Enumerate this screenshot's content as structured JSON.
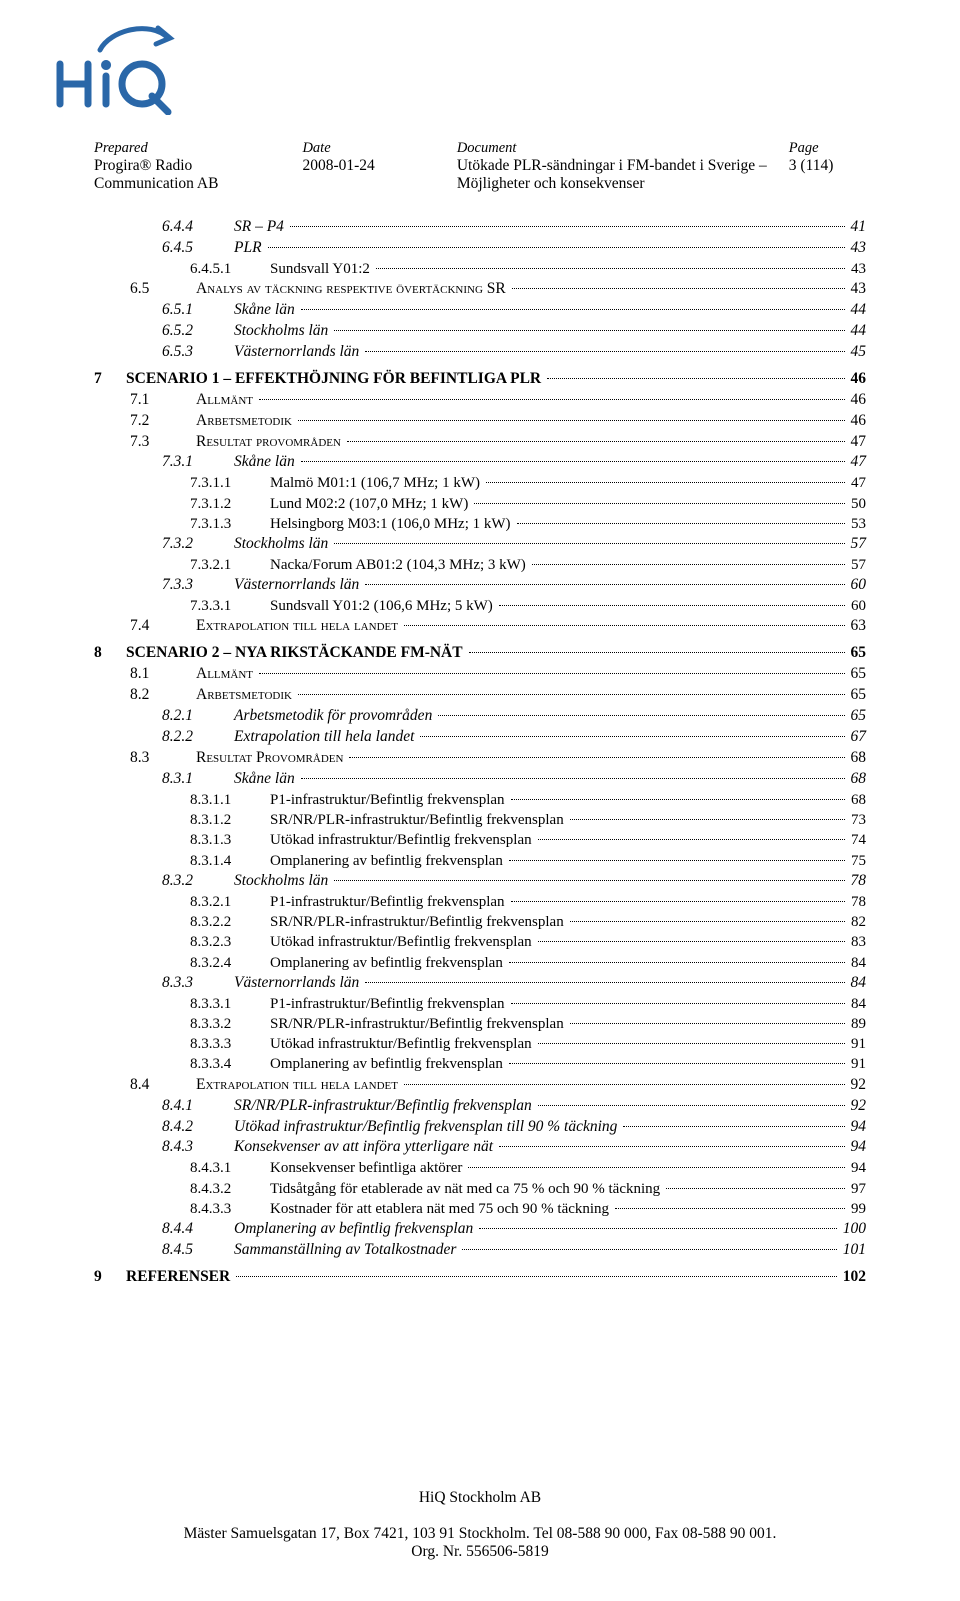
{
  "header": {
    "labels": {
      "prepared": "Prepared",
      "date": "Date",
      "document": "Document",
      "page": "Page"
    },
    "prepared_line1": "Progira® Radio",
    "prepared_line2": "Communication AB",
    "date": "2008-01-24",
    "document_line1": "Utökade PLR-sändningar i FM-bandet i Sverige –",
    "document_line2": "Möjligheter och konsekvenser",
    "page": "3 (114)"
  },
  "logo": {
    "brand": "HiQ",
    "stroke_color": "#2a67a8",
    "accent_color": "#2a67a8"
  },
  "toc": [
    {
      "lvl": "2",
      "num": "6.4.4",
      "title": "SR – P4",
      "page": "41"
    },
    {
      "lvl": "2",
      "num": "6.4.5",
      "title": "PLR",
      "page": "43"
    },
    {
      "lvl": "3",
      "num": "6.4.5.1",
      "title": "Sundsvall Y01:2",
      "page": "43"
    },
    {
      "lvl": "1",
      "num": "6.5",
      "title": "Analys av täckning respektive övertäckning SR",
      "page": "43",
      "sc": true
    },
    {
      "lvl": "2",
      "num": "6.5.1",
      "title": "Skåne län",
      "page": "44"
    },
    {
      "lvl": "2",
      "num": "6.5.2",
      "title": "Stockholms län",
      "page": "44"
    },
    {
      "lvl": "2",
      "num": "6.5.3",
      "title": "Västernorrlands län",
      "page": "45"
    },
    {
      "lvl": "ch",
      "num": "7",
      "title": "SCENARIO 1 – EFFEKTHÖJNING FÖR BEFINTLIGA PLR",
      "page": "46"
    },
    {
      "lvl": "1",
      "num": "7.1",
      "title": "Allmänt",
      "page": "46",
      "sc": true
    },
    {
      "lvl": "1",
      "num": "7.2",
      "title": "Arbetsmetodik",
      "page": "46",
      "sc": true
    },
    {
      "lvl": "1",
      "num": "7.3",
      "title": "Resultat provområden",
      "page": "47",
      "sc": true
    },
    {
      "lvl": "2",
      "num": "7.3.1",
      "title": "Skåne län",
      "page": "47"
    },
    {
      "lvl": "3",
      "num": "7.3.1.1",
      "title": "Malmö M01:1 (106,7 MHz; 1 kW)",
      "page": "47"
    },
    {
      "lvl": "3",
      "num": "7.3.1.2",
      "title": "Lund M02:2 (107,0 MHz; 1 kW)",
      "page": "50"
    },
    {
      "lvl": "3",
      "num": "7.3.1.3",
      "title": "Helsingborg M03:1 (106,0 MHz; 1 kW)",
      "page": "53"
    },
    {
      "lvl": "2",
      "num": "7.3.2",
      "title": "Stockholms län",
      "page": "57"
    },
    {
      "lvl": "3",
      "num": "7.3.2.1",
      "title": "Nacka/Forum AB01:2 (104,3 MHz; 3 kW)",
      "page": "57"
    },
    {
      "lvl": "2",
      "num": "7.3.3",
      "title": "Västernorrlands län",
      "page": "60"
    },
    {
      "lvl": "3",
      "num": "7.3.3.1",
      "title": "Sundsvall Y01:2 (106,6 MHz; 5 kW)",
      "page": "60"
    },
    {
      "lvl": "1",
      "num": "7.4",
      "title": "Extrapolation till hela landet",
      "page": "63",
      "sc": true
    },
    {
      "lvl": "ch",
      "num": "8",
      "title": "SCENARIO 2 – NYA RIKSTÄCKANDE FM-NÄT",
      "page": "65"
    },
    {
      "lvl": "1",
      "num": "8.1",
      "title": "Allmänt",
      "page": "65",
      "sc": true
    },
    {
      "lvl": "1",
      "num": "8.2",
      "title": "Arbetsmetodik",
      "page": "65",
      "sc": true
    },
    {
      "lvl": "2",
      "num": "8.2.1",
      "title": "Arbetsmetodik för provområden",
      "page": "65"
    },
    {
      "lvl": "2",
      "num": "8.2.2",
      "title": "Extrapolation till hela landet",
      "page": "67"
    },
    {
      "lvl": "1",
      "num": "8.3",
      "title": "Resultat Provområden",
      "page": "68",
      "sc": true
    },
    {
      "lvl": "2",
      "num": "8.3.1",
      "title": "Skåne län",
      "page": "68"
    },
    {
      "lvl": "3",
      "num": "8.3.1.1",
      "title": "P1-infrastruktur/Befintlig frekvensplan",
      "page": "68"
    },
    {
      "lvl": "3",
      "num": "8.3.1.2",
      "title": "SR/NR/PLR-infrastruktur/Befintlig frekvensplan",
      "page": "73"
    },
    {
      "lvl": "3",
      "num": "8.3.1.3",
      "title": "Utökad infrastruktur/Befintlig frekvensplan",
      "page": "74"
    },
    {
      "lvl": "3",
      "num": "8.3.1.4",
      "title": "Omplanering av befintlig frekvensplan",
      "page": "75"
    },
    {
      "lvl": "2",
      "num": "8.3.2",
      "title": "Stockholms län",
      "page": "78"
    },
    {
      "lvl": "3",
      "num": "8.3.2.1",
      "title": "P1-infrastruktur/Befintlig frekvensplan",
      "page": "78"
    },
    {
      "lvl": "3",
      "num": "8.3.2.2",
      "title": "SR/NR/PLR-infrastruktur/Befintlig frekvensplan",
      "page": "82"
    },
    {
      "lvl": "3",
      "num": "8.3.2.3",
      "title": "Utökad infrastruktur/Befintlig frekvensplan",
      "page": "83"
    },
    {
      "lvl": "3",
      "num": "8.3.2.4",
      "title": "Omplanering av befintlig frekvensplan",
      "page": "84"
    },
    {
      "lvl": "2",
      "num": "8.3.3",
      "title": "Västernorrlands län",
      "page": "84"
    },
    {
      "lvl": "3",
      "num": "8.3.3.1",
      "title": "P1-infrastruktur/Befintlig frekvensplan",
      "page": "84"
    },
    {
      "lvl": "3",
      "num": "8.3.3.2",
      "title": "SR/NR/PLR-infrastruktur/Befintlig frekvensplan",
      "page": "89"
    },
    {
      "lvl": "3",
      "num": "8.3.3.3",
      "title": "Utökad infrastruktur/Befintlig frekvensplan",
      "page": "91"
    },
    {
      "lvl": "3",
      "num": "8.3.3.4",
      "title": "Omplanering av befintlig frekvensplan",
      "page": "91"
    },
    {
      "lvl": "1",
      "num": "8.4",
      "title": "Extrapolation till hela landet",
      "page": "92",
      "sc": true
    },
    {
      "lvl": "2",
      "num": "8.4.1",
      "title": "SR/NR/PLR-infrastruktur/Befintlig frekvensplan",
      "page": "92"
    },
    {
      "lvl": "2",
      "num": "8.4.2",
      "title": "Utökad infrastruktur/Befintlig frekvensplan till 90 % täckning",
      "page": "94"
    },
    {
      "lvl": "2",
      "num": "8.4.3",
      "title": "Konsekvenser av att införa ytterligare nät",
      "page": "94"
    },
    {
      "lvl": "3",
      "num": "8.4.3.1",
      "title": "Konsekvenser befintliga aktörer",
      "page": "94"
    },
    {
      "lvl": "3",
      "num": "8.4.3.2",
      "title": "Tidsåtgång för etablerade av nät med ca 75 % och 90 % täckning",
      "page": "97"
    },
    {
      "lvl": "3",
      "num": "8.4.3.3",
      "title": "Kostnader för att etablera nät med 75 och 90 % täckning",
      "page": "99"
    },
    {
      "lvl": "2",
      "num": "8.4.4",
      "title": "Omplanering av befintlig frekvensplan",
      "page": "100"
    },
    {
      "lvl": "2",
      "num": "8.4.5",
      "title": "Sammanställning av Totalkostnader",
      "page": "101"
    },
    {
      "lvl": "ch",
      "num": "9",
      "title": "REFERENSER",
      "page": "102"
    }
  ],
  "footer": {
    "company": "HiQ Stockholm AB",
    "address": "Mäster Samuelsgatan 17, Box 7421, 103 91 Stockholm. Tel 08-588 90 000, Fax 08-588 90 001.",
    "orgnr": "Org. Nr. 556506-5819"
  }
}
